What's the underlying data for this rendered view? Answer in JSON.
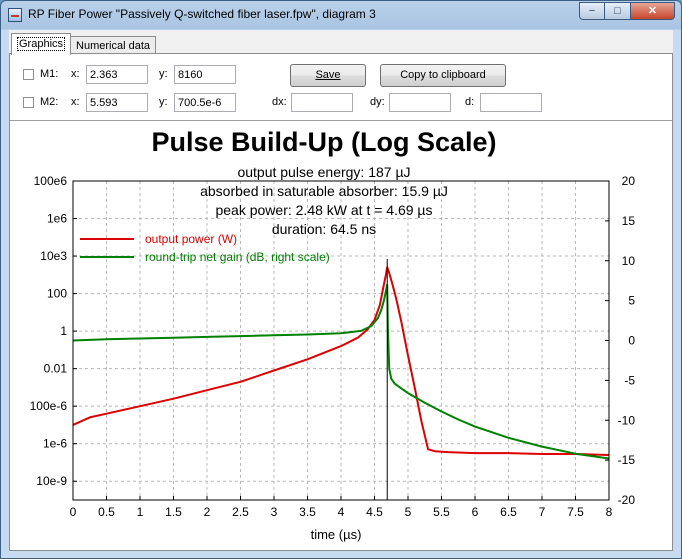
{
  "window": {
    "title": "RP Fiber Power \"Passively Q-switched fiber laser.fpw\", diagram 3",
    "min_symbol": "−",
    "max_symbol": "□",
    "close_symbol": "✕"
  },
  "tabs": [
    {
      "label": "Graphics",
      "active": true
    },
    {
      "label": "Numerical data",
      "active": false
    }
  ],
  "markers": {
    "m1": {
      "label": "M1:",
      "x_label": "x:",
      "x": "2.363",
      "y_label": "y:",
      "y": "8160"
    },
    "m2": {
      "label": "M2:",
      "x_label": "x:",
      "x": "5.593",
      "y_label": "y:",
      "y": "700.5e-6"
    },
    "dx_label": "dx:",
    "dx": "",
    "dy_label": "dy:",
    "dy": "",
    "d_label": "d:",
    "d": ""
  },
  "buttons": {
    "save": "Save",
    "copy": "Copy to clipboard"
  },
  "chart_data": {
    "type": "line",
    "title": "Pulse Build-Up (Log Scale)",
    "annotations": [
      "output pulse energy: 187 µJ",
      "absorbed in saturable absorber: 15.9 µJ",
      "peak power: 2.48 kW at t = 4.69 µs",
      "duration: 64.5 ns"
    ],
    "xlabel": "time (µs)",
    "xlim": [
      0,
      8
    ],
    "x_ticks": [
      "0",
      "0.5",
      "1",
      "1.5",
      "2",
      "2.5",
      "3",
      "3.5",
      "4",
      "4.5",
      "5",
      "5.5",
      "6",
      "6.5",
      "7",
      "7.5",
      "8"
    ],
    "y_left_log_range": [
      -9,
      8
    ],
    "y_left_ticks": [
      {
        "exp": 8,
        "label": "100e6"
      },
      {
        "exp": 6,
        "label": "1e6"
      },
      {
        "exp": 4,
        "label": "10e3"
      },
      {
        "exp": 2,
        "label": "100"
      },
      {
        "exp": 0,
        "label": "1"
      },
      {
        "exp": -2,
        "label": "0.01"
      },
      {
        "exp": -4,
        "label": "100e-6"
      },
      {
        "exp": -6,
        "label": "1e-6"
      },
      {
        "exp": -8,
        "label": "10e-9"
      }
    ],
    "y_right_range": [
      -20,
      20
    ],
    "y_right_ticks": [
      "20",
      "15",
      "10",
      "5",
      "0",
      "-5",
      "-10",
      "-15",
      "-20"
    ],
    "grid": true,
    "cursor_x": 4.69,
    "legend": "top-left",
    "series": [
      {
        "name": "output power (W)",
        "axis": "left",
        "color": "#dd0000",
        "x": [
          0,
          0.25,
          0.5,
          1,
          1.5,
          2,
          2.5,
          3,
          3.5,
          4,
          4.25,
          4.4,
          4.5,
          4.58,
          4.63,
          4.67,
          4.69,
          4.72,
          4.76,
          4.82,
          4.9,
          5.0,
          5.1,
          5.2,
          5.3,
          5.4,
          5.6,
          6,
          6.5,
          7,
          7.5,
          8
        ],
        "log10_y": [
          -5.0,
          -4.6,
          -4.4,
          -4.0,
          -3.6,
          -3.15,
          -2.7,
          -2.1,
          -1.5,
          -0.8,
          -0.35,
          0.1,
          0.6,
          1.4,
          2.3,
          3.0,
          3.4,
          3.1,
          2.6,
          1.8,
          0.5,
          -1.3,
          -3.0,
          -4.8,
          -6.3,
          -6.4,
          -6.45,
          -6.5,
          -6.5,
          -6.55,
          -6.55,
          -6.6
        ]
      },
      {
        "name": "round-trip net gain (dB, right scale)",
        "axis": "right",
        "color": "#008000",
        "x": [
          0,
          0.5,
          1,
          1.5,
          2,
          2.5,
          3,
          3.5,
          4,
          4.3,
          4.45,
          4.55,
          4.6,
          4.64,
          4.67,
          4.69,
          4.7,
          4.72,
          4.75,
          4.8,
          4.9,
          5,
          5.25,
          5.5,
          5.75,
          6,
          6.5,
          7,
          7.5,
          8
        ],
        "y": [
          0,
          0.15,
          0.25,
          0.35,
          0.45,
          0.55,
          0.65,
          0.75,
          0.9,
          1.2,
          1.8,
          2.8,
          3.8,
          5.0,
          6.2,
          7.0,
          1.5,
          -3.5,
          -4.8,
          -5.4,
          -6.0,
          -6.6,
          -7.8,
          -8.9,
          -9.9,
          -10.8,
          -12.2,
          -13.3,
          -14.2,
          -14.8
        ]
      }
    ]
  }
}
